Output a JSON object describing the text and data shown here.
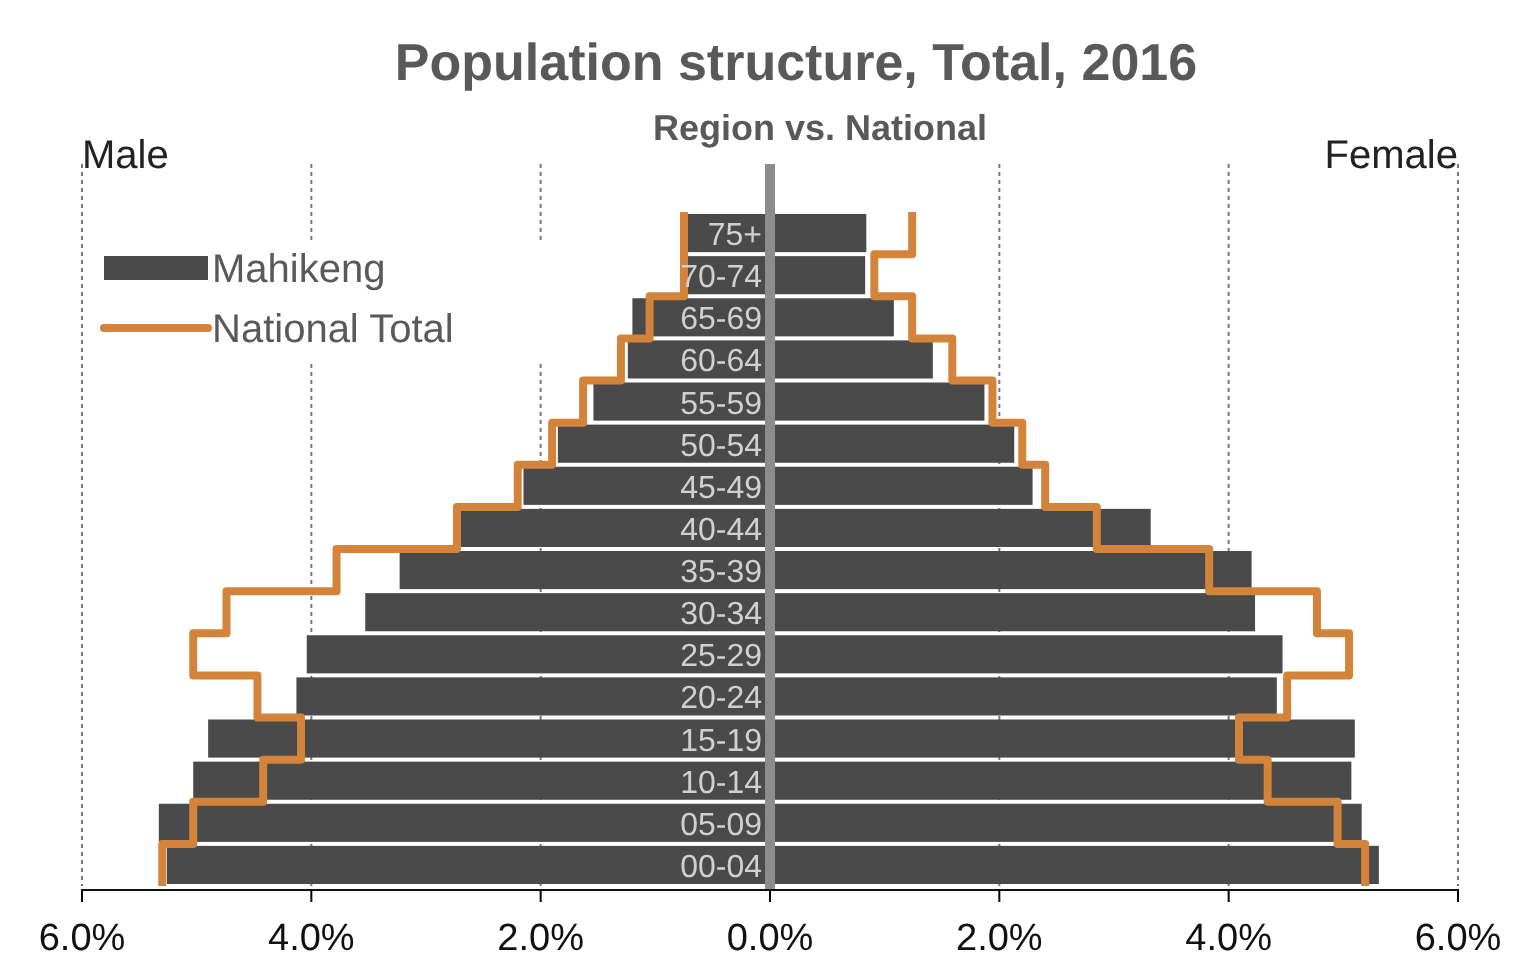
{
  "chart_data": {
    "type": "bar",
    "orientation": "horizontal",
    "title": "Population structure, Total, 2016",
    "subtitle": "Region vs. National",
    "categories": [
      "75+",
      "70-74",
      "65-69",
      "60-64",
      "55-59",
      "50-54",
      "45-49",
      "40-44",
      "35-39",
      "30-34",
      "25-29",
      "20-24",
      "15-19",
      "10-14",
      "05-09",
      "00-04"
    ],
    "series": [
      {
        "name": "Mahikeng",
        "color": "#4a4a4a",
        "values": [
          -0.72,
          -0.72,
          -1.2,
          -1.24,
          -1.54,
          -1.85,
          -2.15,
          -2.7,
          -3.23,
          -3.53,
          -4.04,
          -4.13,
          -4.9,
          -5.03,
          -5.33,
          -5.26
        ]
      },
      {
        "color": "#4a4a4a",
        "values": [
          0.84,
          0.83,
          1.08,
          1.42,
          1.87,
          2.13,
          2.29,
          3.32,
          4.2,
          4.23,
          4.47,
          4.42,
          5.1,
          5.07,
          5.16,
          5.31
        ]
      },
      {
        "name": "National Total",
        "type": "step",
        "color": "#d3843a",
        "values": [
          -0.75,
          -0.75,
          -1.05,
          -1.3,
          -1.63,
          -1.9,
          -2.2,
          -2.73,
          -3.78,
          -4.74,
          -5.03,
          -4.47,
          -4.09,
          -4.42,
          -5.03,
          -5.3
        ]
      },
      {
        "type": "step",
        "color": "#d3843a",
        "values": [
          1.24,
          0.91,
          1.24,
          1.59,
          1.94,
          2.2,
          2.4,
          2.85,
          3.83,
          4.77,
          5.05,
          4.51,
          4.09,
          4.34,
          4.95,
          5.19
        ]
      }
    ],
    "xlim": [
      -6,
      6
    ],
    "xticks": [
      {
        "value": -6,
        "label": "6.0%"
      },
      {
        "value": -4,
        "label": "4.0%"
      },
      {
        "value": -2,
        "label": "2.0%"
      },
      {
        "value": 0,
        "label": "0.0%"
      },
      {
        "value": 2,
        "label": "2.0%"
      },
      {
        "value": 4,
        "label": "4.0%"
      },
      {
        "value": 6,
        "label": "6.0%"
      }
    ],
    "grid": "x",
    "legend": "top left",
    "stacked": true,
    "annotations": [
      "Male",
      "Female"
    ]
  }
}
